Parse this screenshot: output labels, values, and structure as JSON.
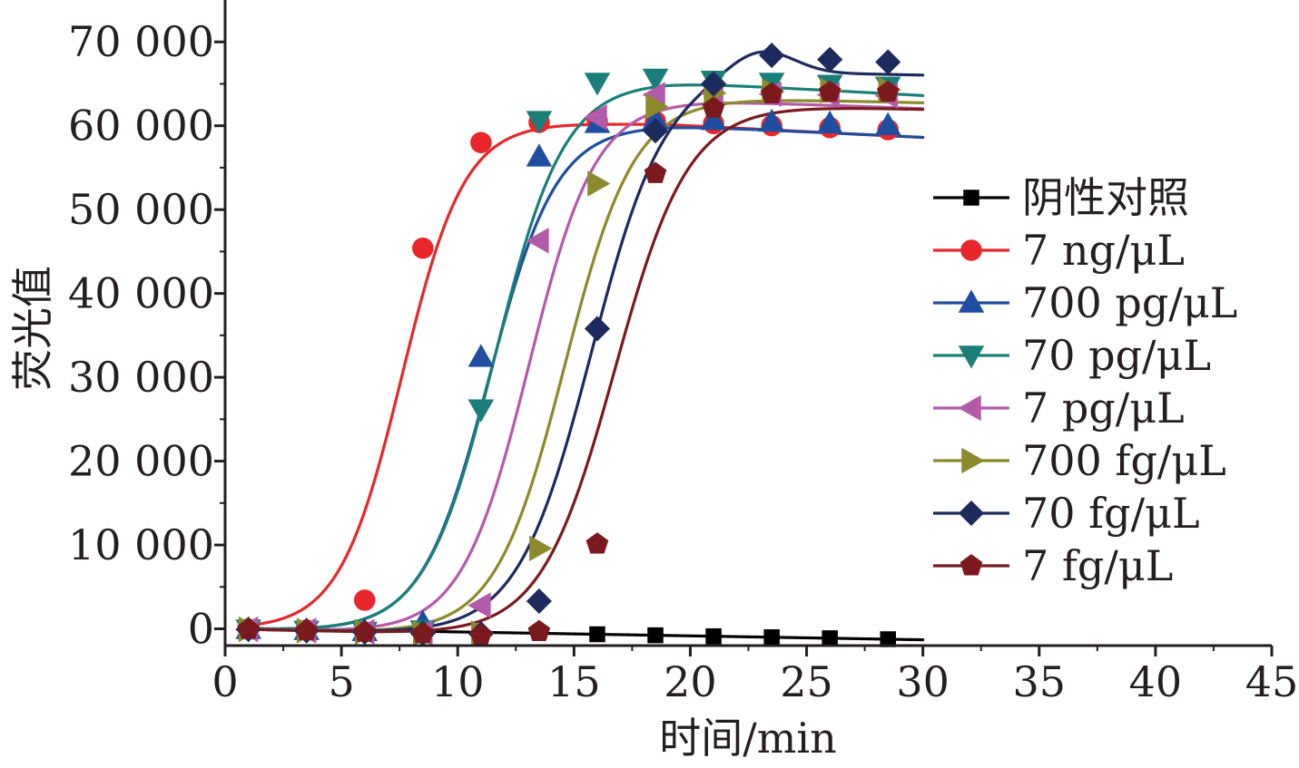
{
  "chart_data": {
    "type": "line",
    "title": "",
    "xlabel": "时间/min",
    "ylabel": "荧光值",
    "xlim": [
      0,
      45
    ],
    "ylim": [
      -2000,
      75000
    ],
    "x_ticks": [
      0,
      5,
      10,
      15,
      20,
      25,
      30,
      35,
      40,
      45
    ],
    "x_tick_labels": [
      "0",
      "5",
      "10",
      "15",
      "20",
      "25",
      "30",
      "35",
      "40",
      "45"
    ],
    "y_ticks": [
      0,
      10000,
      20000,
      30000,
      40000,
      50000,
      60000,
      70000
    ],
    "y_tick_labels": [
      "0",
      "10 000",
      "20 000",
      "30 000",
      "40 000",
      "50 000",
      "60 000",
      "70 000"
    ],
    "grid": false,
    "legend_position": "right",
    "x": [
      1,
      3.5,
      6,
      8.5,
      11,
      13.5,
      16,
      18.5,
      21,
      23.5,
      26,
      28.5
    ],
    "series": [
      {
        "name": "阴性对照",
        "color": "#000000",
        "marker": "square",
        "curve": {
          "base": 100,
          "slope": -47,
          "amp": 0,
          "x0": 0,
          "k": 1
        },
        "markers_at": [
          16,
          18.5,
          21,
          23.5,
          26,
          28.5
        ],
        "values": [
          53,
          -65,
          -182,
          -300,
          -417,
          -535,
          -650,
          -770,
          -887,
          -1005,
          -1122,
          -1240
        ]
      },
      {
        "name": "7 ng/μL",
        "color": "#e8262b",
        "marker": "circle",
        "curve": {
          "base": 0,
          "slope": -45,
          "amp": 61000,
          "x0": 7.6,
          "k": 1.35,
          "drift": -95,
          "drift_start": 19
        },
        "markers_at": [
          1,
          3.5,
          6,
          8.5,
          11,
          13.5,
          16,
          18.5,
          21,
          23.5,
          26,
          28.5
        ],
        "values": [
          -45,
          -150,
          3420,
          45400,
          58000,
          60400,
          60560,
          60510,
          60260,
          60020,
          59780,
          59540
        ]
      },
      {
        "name": "700 pg/μL",
        "color": "#1f4ea1",
        "marker": "triangle-up",
        "curve": {
          "base": 0,
          "slope": -50,
          "amp": 61000,
          "x0": 11.35,
          "k": 1.45,
          "drift": -80,
          "drift_start": 19
        },
        "markers_at": [
          1,
          3.5,
          6,
          8.5,
          11,
          13.5,
          16,
          18.5,
          21,
          23.5,
          26,
          28.5
        ],
        "values": [
          -50,
          -175,
          -290,
          700,
          32400,
          56300,
          60300,
          60770,
          60660,
          60460,
          60260,
          60060
        ]
      },
      {
        "name": "70 pg/μL",
        "color": "#1a7f78",
        "marker": "triangle-down",
        "curve": {
          "base": 0,
          "slope": -55,
          "amp": 66300,
          "x0": 11.6,
          "k": 1.5,
          "drift": -95,
          "drift_start": 19
        },
        "markers_at": [
          1,
          3.5,
          6,
          8.5,
          11,
          13.5,
          16,
          18.5,
          21,
          23.5,
          26,
          28.5
        ],
        "values": [
          -55,
          -190,
          -330,
          -150,
          26200,
          60600,
          65160,
          65650,
          65400,
          65160,
          64920,
          64690
        ]
      },
      {
        "name": "7 pg/μL",
        "color": "#b35aa8",
        "marker": "triangle-left",
        "curve": {
          "base": 0,
          "slope": -60,
          "amp": 64200,
          "x0": 13.05,
          "k": 1.45,
          "drift": -40,
          "drift_start": 21
        },
        "markers_at": [
          1,
          3.5,
          6,
          8.5,
          11,
          13.5,
          16,
          18.5,
          21,
          23.5,
          26,
          28.5
        ],
        "values": [
          -60,
          -210,
          -360,
          -485,
          2800,
          46300,
          61000,
          63700,
          63880,
          63780,
          63680,
          63580
        ]
      },
      {
        "name": "700 fg/μL",
        "color": "#8c8a2a",
        "marker": "triangle-right",
        "curve": {
          "base": 0,
          "slope": -62,
          "amp": 64600,
          "x0": 14.6,
          "k": 1.5,
          "drift": 0,
          "drift_start": 30
        },
        "markers_at": [
          1,
          3.5,
          6,
          8.5,
          11,
          13.5,
          16,
          18.5,
          21,
          23.5,
          26,
          28.5
        ],
        "values": [
          -60,
          -215,
          -370,
          -520,
          -520,
          9600,
          53100,
          62300,
          63900,
          64100,
          64200,
          64300
        ]
      },
      {
        "name": "70 fg/μL",
        "color": "#1d2a5e",
        "marker": "diamond",
        "curve": {
          "base": 0,
          "slope": -65,
          "amp": 68000,
          "x0": 15.75,
          "k": 1.6,
          "drift": 0,
          "drift_start": 30,
          "bump_amp": 3000,
          "bump_center": 23,
          "bump_width": 2.0
        },
        "markers_at": [
          1,
          3.5,
          6,
          8.5,
          11,
          13.5,
          16,
          18.5,
          21,
          23.5,
          26,
          28.5
        ],
        "values": [
          -65,
          -230,
          -390,
          -550,
          -600,
          3300,
          35800,
          59400,
          65000,
          68400,
          67900,
          67600
        ]
      },
      {
        "name": "7 fg/μL",
        "color": "#7a1a1f",
        "marker": "pentagon",
        "curve": {
          "base": 0,
          "slope": -68,
          "amp": 64000,
          "x0": 16.75,
          "k": 1.6,
          "drift": 0,
          "drift_start": 30
        },
        "markers_at": [
          1,
          3.5,
          6,
          8.5,
          11,
          13.5,
          16,
          18.5,
          21,
          23.5,
          26,
          28.5
        ],
        "values": [
          -68,
          -240,
          -410,
          -580,
          -750,
          -330,
          10100,
          54300,
          62100,
          63800,
          64000,
          64000
        ]
      }
    ]
  }
}
